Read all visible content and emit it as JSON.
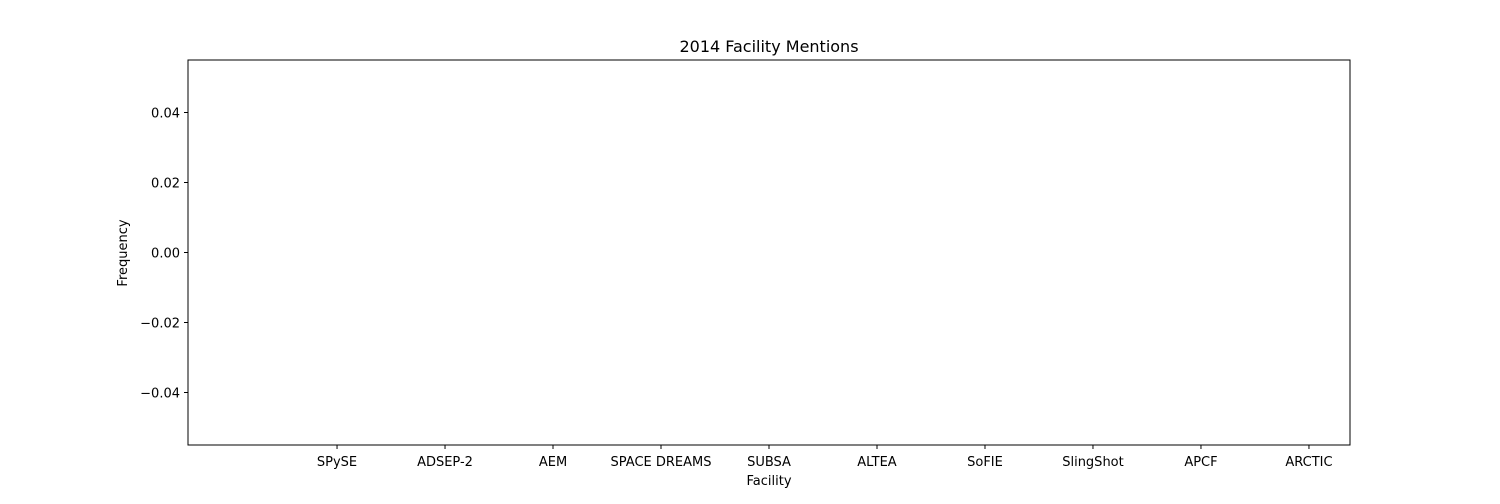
{
  "chart_data": {
    "type": "bar",
    "title": "2014 Facility Mentions",
    "xlabel": "Facility",
    "ylabel": "Frequency",
    "categories": [
      "SPySE",
      "ADSEP-2",
      "AEM",
      "SPACE DREAMS",
      "SUBSA",
      "ALTEA",
      "SoFIE",
      "SlingShot",
      "APCF",
      "ARCTIC"
    ],
    "values": [
      0,
      0,
      0,
      0,
      0,
      0,
      0,
      0,
      0,
      0
    ],
    "ylim": [
      -0.055,
      0.055
    ],
    "yticks": [
      0.04,
      0.02,
      0.0,
      -0.02,
      -0.04
    ],
    "ytick_labels": [
      "0.04",
      "0.02",
      "0.00",
      "−0.02",
      "−0.04"
    ],
    "grid": false,
    "bar_color": "#1f77b4"
  }
}
